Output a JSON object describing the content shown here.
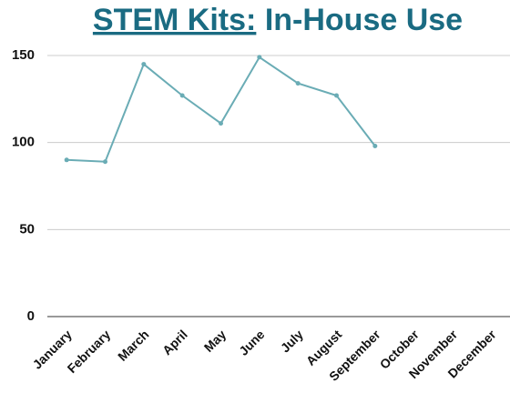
{
  "chart_data": {
    "type": "line",
    "title": [
      "STEM Kits:",
      "In-House Use"
    ],
    "categories": [
      "January",
      "February",
      "March",
      "April",
      "May",
      "June",
      "July",
      "August",
      "September",
      "October",
      "November",
      "December"
    ],
    "series": [
      {
        "name": "In-House Use",
        "color": "#6aacb5",
        "values": [
          90,
          89,
          145,
          127,
          111,
          149,
          134,
          127,
          98,
          null,
          null,
          null
        ]
      }
    ],
    "ylim": [
      0,
      150
    ],
    "yticks": [
      0,
      50,
      100,
      150
    ],
    "grid": true
  }
}
